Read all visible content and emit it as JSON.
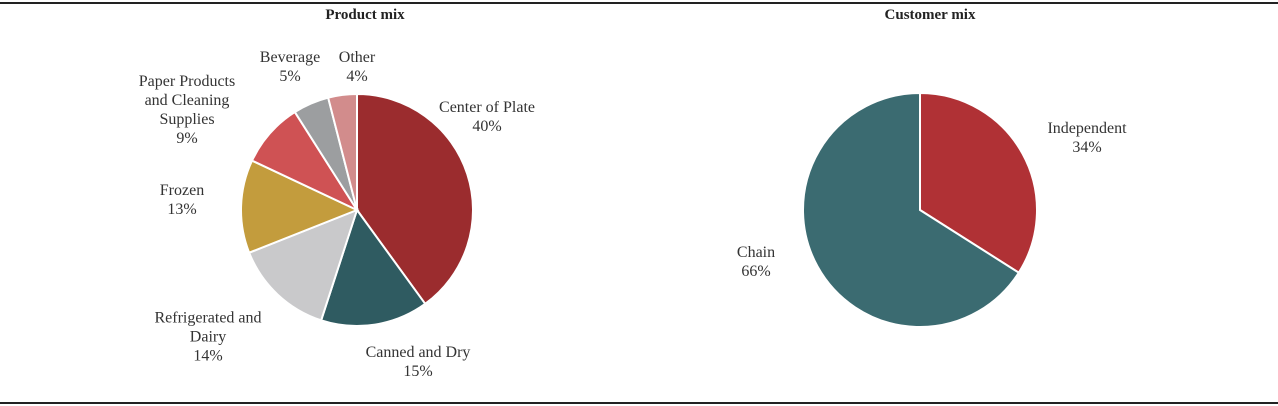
{
  "chart_data": [
    {
      "type": "pie",
      "title": "Product mix",
      "categories": [
        "Center of Plate",
        "Canned and Dry",
        "Refrigerated and Dairy",
        "Frozen",
        "Paper Products and Cleaning Supplies",
        "Beverage",
        "Other"
      ],
      "values": [
        40,
        15,
        14,
        13,
        9,
        5,
        4
      ],
      "value_labels": [
        "40%",
        "15%",
        "14%",
        "13%",
        "9%",
        "5%",
        "4%"
      ],
      "colors": [
        "#9b2c2e",
        "#2f5b61",
        "#c9c9cb",
        "#c39c3d",
        "#cf5254",
        "#9c9ea0",
        "#d28c8c"
      ]
    },
    {
      "type": "pie",
      "title": "Customer mix",
      "categories": [
        "Independent",
        "Chain"
      ],
      "values": [
        34,
        66
      ],
      "value_labels": [
        "34%",
        "66%"
      ],
      "colors": [
        "#b03135",
        "#3b6b71"
      ]
    }
  ]
}
